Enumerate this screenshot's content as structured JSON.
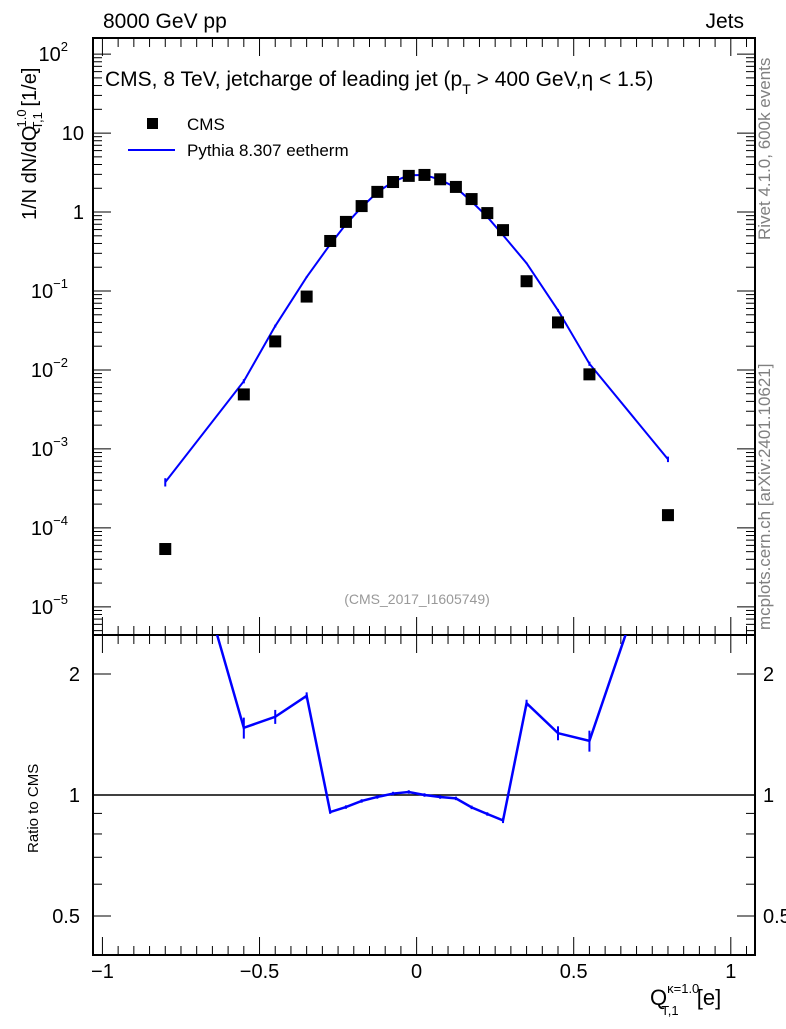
{
  "header": {
    "left": "8000 GeV pp",
    "right": "Jets"
  },
  "side_labels": {
    "rivet": "Rivet 4.1.0,  600k events",
    "mcplots": "mcplots.cern.ch [arXiv:2401.10621]"
  },
  "colors": {
    "mc": "#0000ff",
    "data": "#000000",
    "grey": "#808080"
  },
  "chart_data": [
    {
      "type": "scatter",
      "title": "CMS, 8 TeV, jetcharge of leading jet (p_T > 400 GeV,η < 1.5)",
      "title_main": "CMS, 8 TeV, jetcharge of leading jet (p",
      "title_sub": "T",
      "title_end": " > 400 GeV,η < 1.5)",
      "analysis": "(CMS_2017_I1605749)",
      "ylabel": "1/N dN/dQ",
      "ylabel_sup": "1.0",
      "ylabel_sub": "T,1",
      "ylabel_unit": " [1/e]",
      "yscale": "log",
      "ylim": [
        4.4e-06,
        160
      ],
      "xlim": [
        -1.03,
        1.077
      ],
      "yticks": [
        {
          "v": 100,
          "m": "10",
          "e": "2"
        },
        {
          "v": 10,
          "m": "10",
          "e": ""
        },
        {
          "v": 1,
          "m": "1",
          "e": ""
        },
        {
          "v": 0.1,
          "m": "10",
          "e": "−1"
        },
        {
          "v": 0.01,
          "m": "10",
          "e": "−2"
        },
        {
          "v": 0.001,
          "m": "10",
          "e": "−3"
        },
        {
          "v": 0.0001,
          "m": "10",
          "e": "−4"
        },
        {
          "v": 1e-05,
          "m": "10",
          "e": "−5"
        }
      ],
      "legend": [
        "CMS",
        "Pythia 8.307 eetherm"
      ],
      "legend_position": "top-left",
      "x": [
        -0.8,
        -0.55,
        -0.45,
        -0.35,
        -0.275,
        -0.225,
        -0.175,
        -0.125,
        -0.075,
        -0.025,
        0.025,
        0.075,
        0.125,
        0.175,
        0.225,
        0.275,
        0.35,
        0.45,
        0.55,
        0.8
      ],
      "series": [
        {
          "name": "CMS",
          "values": [
            5.4e-05,
            0.0049,
            0.023,
            0.085,
            0.43,
            0.75,
            1.19,
            1.8,
            2.4,
            2.87,
            2.95,
            2.6,
            2.08,
            1.46,
            0.97,
            0.59,
            0.133,
            0.04,
            0.0088,
            0.000145
          ]
        },
        {
          "name": "Pythia 8.307 eetherm",
          "values": [
            0.00038,
            0.0072,
            0.036,
            0.15,
            0.39,
            0.7,
            1.15,
            1.78,
            2.42,
            2.92,
            2.95,
            2.57,
            2.04,
            1.36,
            0.87,
            0.51,
            0.225,
            0.057,
            0.012,
            0.00074
          ],
          "rel_err": [
            0.12,
            0.06,
            0.04,
            0.02,
            0.01,
            0.01,
            0.01,
            0.01,
            0.01,
            0.01,
            0.01,
            0.01,
            0.01,
            0.01,
            0.01,
            0.015,
            0.02,
            0.04,
            0.06,
            0.08
          ]
        }
      ]
    },
    {
      "type": "line",
      "ylabel": "Ratio to CMS",
      "xlabel": "Q",
      "xlabel_sup": "κ=1.0",
      "xlabel_sub": "T,1",
      "xlabel_unit": " [e]",
      "yscale": "log",
      "ylim": [
        0.4,
        2.5
      ],
      "yticks": [
        {
          "v": 2,
          "l": "2"
        },
        {
          "v": 1,
          "l": "1"
        },
        {
          "v": 0.5,
          "l": "0.5"
        }
      ],
      "xticks": [
        {
          "v": -1,
          "l": "−1"
        },
        {
          "v": -0.5,
          "l": "−0.5"
        },
        {
          "v": 0,
          "l": "0"
        },
        {
          "v": 0.5,
          "l": "0.5"
        },
        {
          "v": 1,
          "l": "1"
        }
      ],
      "reference": 1
    }
  ]
}
